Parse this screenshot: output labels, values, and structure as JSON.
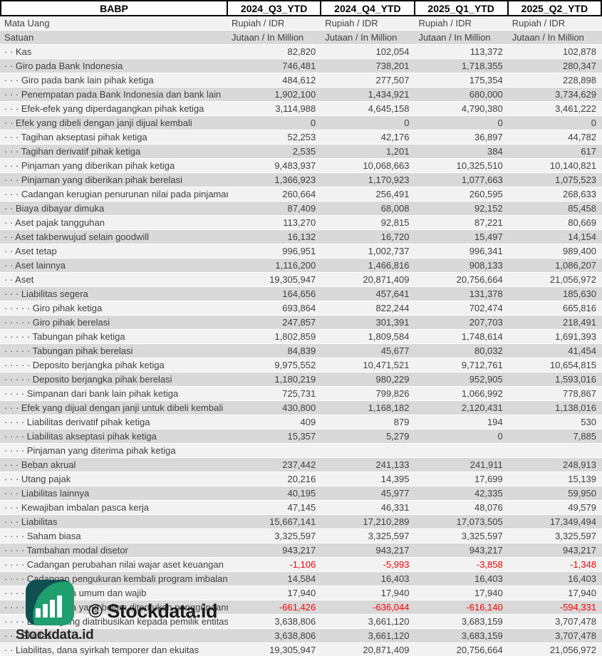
{
  "header": {
    "ticker": "BABP",
    "columns": [
      "2024_Q3_YTD",
      "2024_Q4_YTD",
      "2025_Q1_YTD",
      "2025_Q2_YTD"
    ]
  },
  "meta_rows": [
    {
      "label": "Mata Uang",
      "values": [
        "Rupiah / IDR",
        "Rupiah / IDR",
        "Rupiah / IDR",
        "Rupiah / IDR"
      ]
    },
    {
      "label": "Satuan",
      "values": [
        "Jutaan / In Million",
        "Jutaan / In Million",
        "Jutaan / In Million",
        "Jutaan / In Million"
      ]
    }
  ],
  "rows": [
    {
      "label": "· · Kas",
      "values": [
        "82,820",
        "102,054",
        "113,372",
        "102,878"
      ]
    },
    {
      "label": "· · Giro pada Bank Indonesia",
      "values": [
        "746,481",
        "738,201",
        "1,718,355",
        "280,347"
      ]
    },
    {
      "label": "· · · Giro pada bank lain pihak ketiga",
      "values": [
        "484,612",
        "277,507",
        "175,354",
        "228,898"
      ]
    },
    {
      "label": "· · · Penempatan pada Bank Indonesia dan bank lain",
      "values": [
        "1,902,100",
        "1,434,921",
        "680,000",
        "3,734,629"
      ]
    },
    {
      "label": "· · · Efek-efek yang diperdagangkan pihak ketiga",
      "values": [
        "3,114,988",
        "4,645,158",
        "4,790,380",
        "3,461,222"
      ]
    },
    {
      "label": "· · Efek yang dibeli dengan janji dijual kembali",
      "values": [
        "0",
        "0",
        "0",
        "0"
      ]
    },
    {
      "label": "· · · Tagihan akseptasi pihak ketiga",
      "values": [
        "52,253",
        "42,176",
        "36,897",
        "44,782"
      ]
    },
    {
      "label": "· · · Tagihan derivatif pihak ketiga",
      "values": [
        "2,535",
        "1,201",
        "384",
        "617"
      ]
    },
    {
      "label": "· · · Pinjaman yang diberikan pihak ketiga",
      "values": [
        "9,483,937",
        "10,068,663",
        "10,325,510",
        "10,140,821"
      ]
    },
    {
      "label": "· · · Pinjaman yang diberikan pihak berelasi",
      "values": [
        "1,366,923",
        "1,170,923",
        "1,077,663",
        "1,075,523"
      ]
    },
    {
      "label": "· · · Cadangan kerugian penurunan nilai pada pinjaman",
      "values": [
        "260,664",
        "256,491",
        "260,595",
        "268,633"
      ]
    },
    {
      "label": "· · Biaya dibayar dimuka",
      "values": [
        "87,409",
        "68,008",
        "92,152",
        "85,458"
      ]
    },
    {
      "label": "· · Aset pajak tangguhan",
      "values": [
        "113,270",
        "92,815",
        "87,221",
        "80,669"
      ]
    },
    {
      "label": "· · Aset takberwujud selain goodwill",
      "values": [
        "16,132",
        "16,720",
        "15,497",
        "14,154"
      ]
    },
    {
      "label": "· · Aset tetap",
      "values": [
        "996,951",
        "1,002,737",
        "996,341",
        "989,400"
      ]
    },
    {
      "label": "· · Aset lainnya",
      "values": [
        "1,116,200",
        "1,466,816",
        "908,133",
        "1,086,207"
      ]
    },
    {
      "label": "· · Aset",
      "values": [
        "19,305,947",
        "20,871,409",
        "20,756,664",
        "21,056,972"
      ]
    },
    {
      "label": "· · · Liabilitas segera",
      "values": [
        "164,656",
        "457,641",
        "131,378",
        "185,630"
      ]
    },
    {
      "label": "· · · · · Giro pihak ketiga",
      "values": [
        "693,864",
        "822,244",
        "702,474",
        "665,816"
      ]
    },
    {
      "label": "· · · · · Giro pihak berelasi",
      "values": [
        "247,857",
        "301,391",
        "207,703",
        "218,491"
      ]
    },
    {
      "label": "· · · · · Tabungan pihak ketiga",
      "values": [
        "1,802,859",
        "1,809,584",
        "1,748,614",
        "1,691,393"
      ]
    },
    {
      "label": "· · · · · Tabungan pihak berelasi",
      "values": [
        "84,839",
        "45,677",
        "80,032",
        "41,454"
      ]
    },
    {
      "label": "· · · · · Deposito berjangka pihak ketiga",
      "values": [
        "9,975,552",
        "10,471,521",
        "9,712,761",
        "10,654,815"
      ]
    },
    {
      "label": "· · · · · Deposito berjangka pihak berelasi",
      "values": [
        "1,180,219",
        "980,229",
        "952,905",
        "1,593,016"
      ]
    },
    {
      "label": "· · · · Simpanan dari bank lain pihak ketiga",
      "values": [
        "725,731",
        "799,826",
        "1,066,992",
        "778,867"
      ]
    },
    {
      "label": "· · · Efek yang dijual dengan janji untuk dibeli kembali",
      "values": [
        "430,800",
        "1,168,182",
        "2,120,431",
        "1,138,016"
      ]
    },
    {
      "label": "· · · · Liabilitas derivatif pihak ketiga",
      "values": [
        "409",
        "879",
        "194",
        "530"
      ]
    },
    {
      "label": "· · · · Liabilitas akseptasi pihak ketiga",
      "values": [
        "15,357",
        "5,279",
        "0",
        "7,885"
      ]
    },
    {
      "label": "· · · · Pinjaman yang diterima pihak ketiga",
      "values": [
        "",
        "",
        "",
        ""
      ]
    },
    {
      "label": "· · · Beban akrual",
      "values": [
        "237,442",
        "241,133",
        "241,911",
        "248,913"
      ]
    },
    {
      "label": "· · · Utang pajak",
      "values": [
        "20,216",
        "14,395",
        "17,699",
        "15,139"
      ]
    },
    {
      "label": "· · · Liabilitas lainnya",
      "values": [
        "40,195",
        "45,977",
        "42,335",
        "59,950"
      ]
    },
    {
      "label": "· · · Kewajiban imbalan pasca kerja",
      "values": [
        "47,145",
        "46,331",
        "48,076",
        "49,579"
      ]
    },
    {
      "label": "· · · Liabilitas",
      "values": [
        "15,667,141",
        "17,210,289",
        "17,073,505",
        "17,349,494"
      ]
    },
    {
      "label": "· · · · Saham biasa",
      "values": [
        "3,325,597",
        "3,325,597",
        "3,325,597",
        "3,325,597"
      ]
    },
    {
      "label": "· · · · Tambahan modal disetor",
      "values": [
        "943,217",
        "943,217",
        "943,217",
        "943,217"
      ]
    },
    {
      "label": "· · · · Cadangan perubahan nilai wajar aset keuangan",
      "values": [
        "-1,106",
        "-5,993",
        "-3,858",
        "-1,348"
      ]
    },
    {
      "label": "· · · · Cadangan pengukuran kembali program imbalan pasti",
      "values": [
        "14,584",
        "16,403",
        "16,403",
        "16,403"
      ]
    },
    {
      "label": "· · · · · Saldo laba umum dan wajib",
      "values": [
        "17,940",
        "17,940",
        "17,940",
        "17,940"
      ]
    },
    {
      "label": "· · · · · Saldo laba yang belum ditentukan penggunaannya",
      "values": [
        "-661,426",
        "-636,044",
        "-616,140",
        "-594,331"
      ]
    },
    {
      "label": "· · · · Ekuitas yang diatribusikan kepada pemilik entitas induk",
      "values": [
        "3,638,806",
        "3,661,120",
        "3,683,159",
        "3,707,478"
      ]
    },
    {
      "label": "· · · Ekuitas",
      "values": [
        "3,638,806",
        "3,661,120",
        "3,683,159",
        "3,707,478"
      ]
    },
    {
      "label": "· · Liabilitas, dana syirkah temporer dan ekuitas",
      "values": [
        "19,305,947",
        "20,871,409",
        "20,756,664",
        "21,056,972"
      ]
    }
  ],
  "watermark": {
    "copyright": "© Stockdata.id",
    "brand": "Stockdata.id"
  },
  "colors": {
    "negative_text": "#ff0000",
    "stripe_light": "#f2f2f2",
    "stripe_dark": "#d9d9d9",
    "text": "#404040",
    "logo_teal": "#115052",
    "logo_green": "#1f9e6e"
  }
}
